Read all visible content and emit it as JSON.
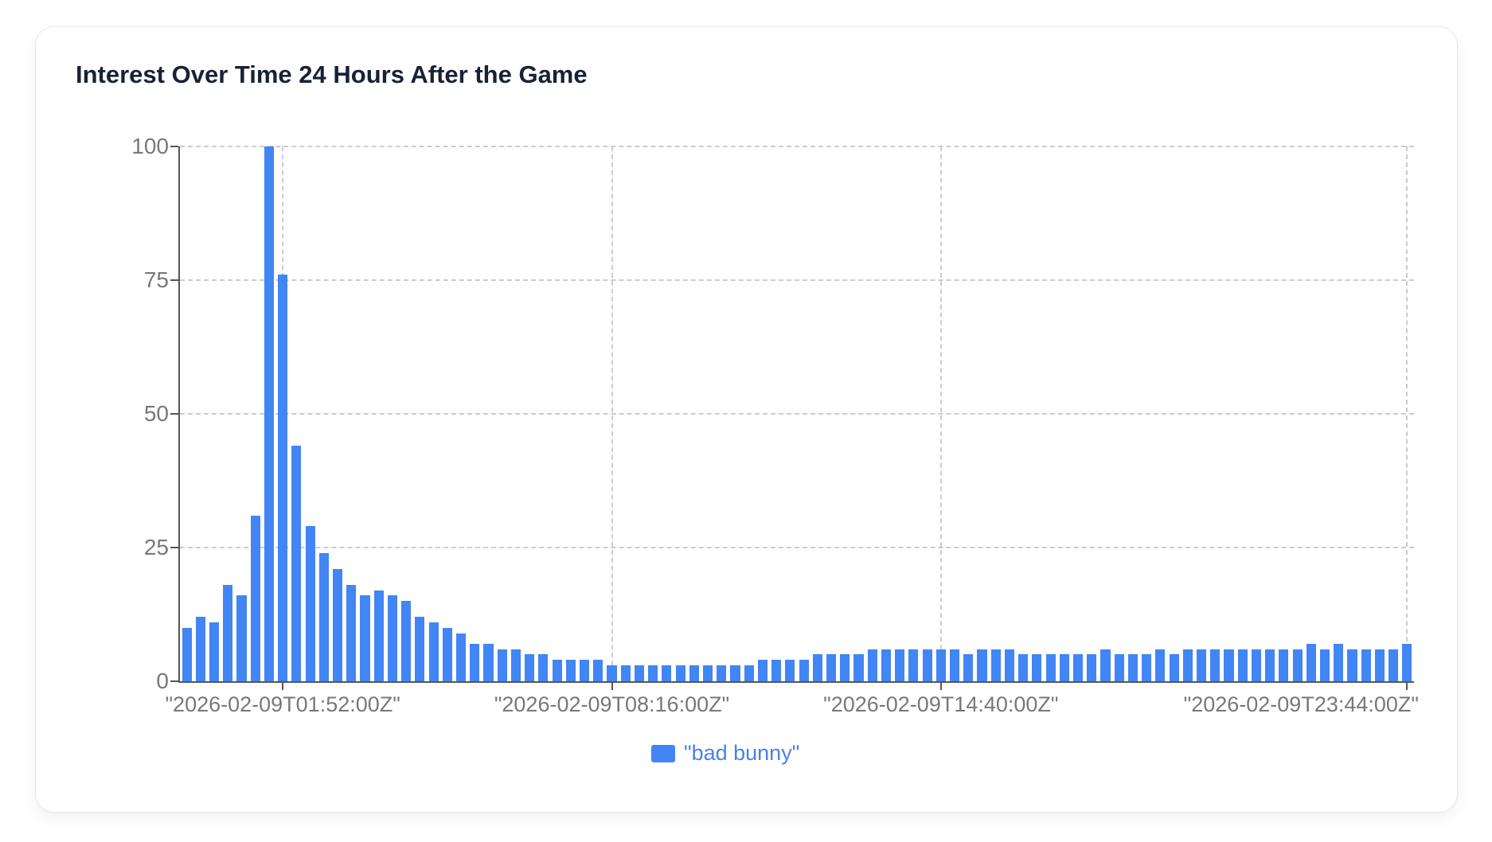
{
  "card": {
    "title": "Interest Over Time 24 Hours After the Game"
  },
  "legend": {
    "label": "\"bad bunny\""
  },
  "colors": {
    "bar": "#4285F4",
    "legend_text": "#4a80ea",
    "title_text": "#182136",
    "axis_text": "#77787c",
    "axis_line": "#55565c",
    "gridline": "#cbcccf"
  },
  "chart_data": {
    "type": "bar",
    "title": "Interest Over Time 24 Hours After the Game",
    "series": [
      {
        "name": "\"bad bunny\"",
        "values": [
          10,
          12,
          11,
          18,
          16,
          31,
          100,
          76,
          44,
          29,
          24,
          21,
          18,
          16,
          17,
          16,
          15,
          12,
          11,
          10,
          9,
          7,
          7,
          6,
          6,
          5,
          5,
          4,
          4,
          4,
          4,
          3,
          3,
          3,
          3,
          3,
          3,
          3,
          3,
          3,
          3,
          3,
          4,
          4,
          4,
          4,
          5,
          5,
          5,
          5,
          6,
          6,
          6,
          6,
          6,
          6,
          6,
          5,
          6,
          6,
          6,
          5,
          5,
          5,
          5,
          5,
          5,
          6,
          5,
          5,
          5,
          6,
          5,
          6,
          6,
          6,
          6,
          6,
          6,
          6,
          6,
          6,
          7,
          6,
          7,
          6,
          6,
          6,
          6,
          7
        ]
      }
    ],
    "n_points": 90,
    "x_tick_labels": [
      {
        "index": 7,
        "label": "\"2026-02-09T01:52:00Z\""
      },
      {
        "index": 31,
        "label": "\"2026-02-09T08:16:00Z\""
      },
      {
        "index": 55,
        "label": "\"2026-02-09T14:40:00Z\""
      },
      {
        "index": 89,
        "label": "\"2026-02-09T23:44:00Z\""
      }
    ],
    "y_ticks": [
      0,
      25,
      50,
      75,
      100
    ],
    "ylim": [
      0,
      100
    ],
    "grid": "dashed",
    "legend_position": "bottom",
    "bar_color": "#4285F4"
  }
}
